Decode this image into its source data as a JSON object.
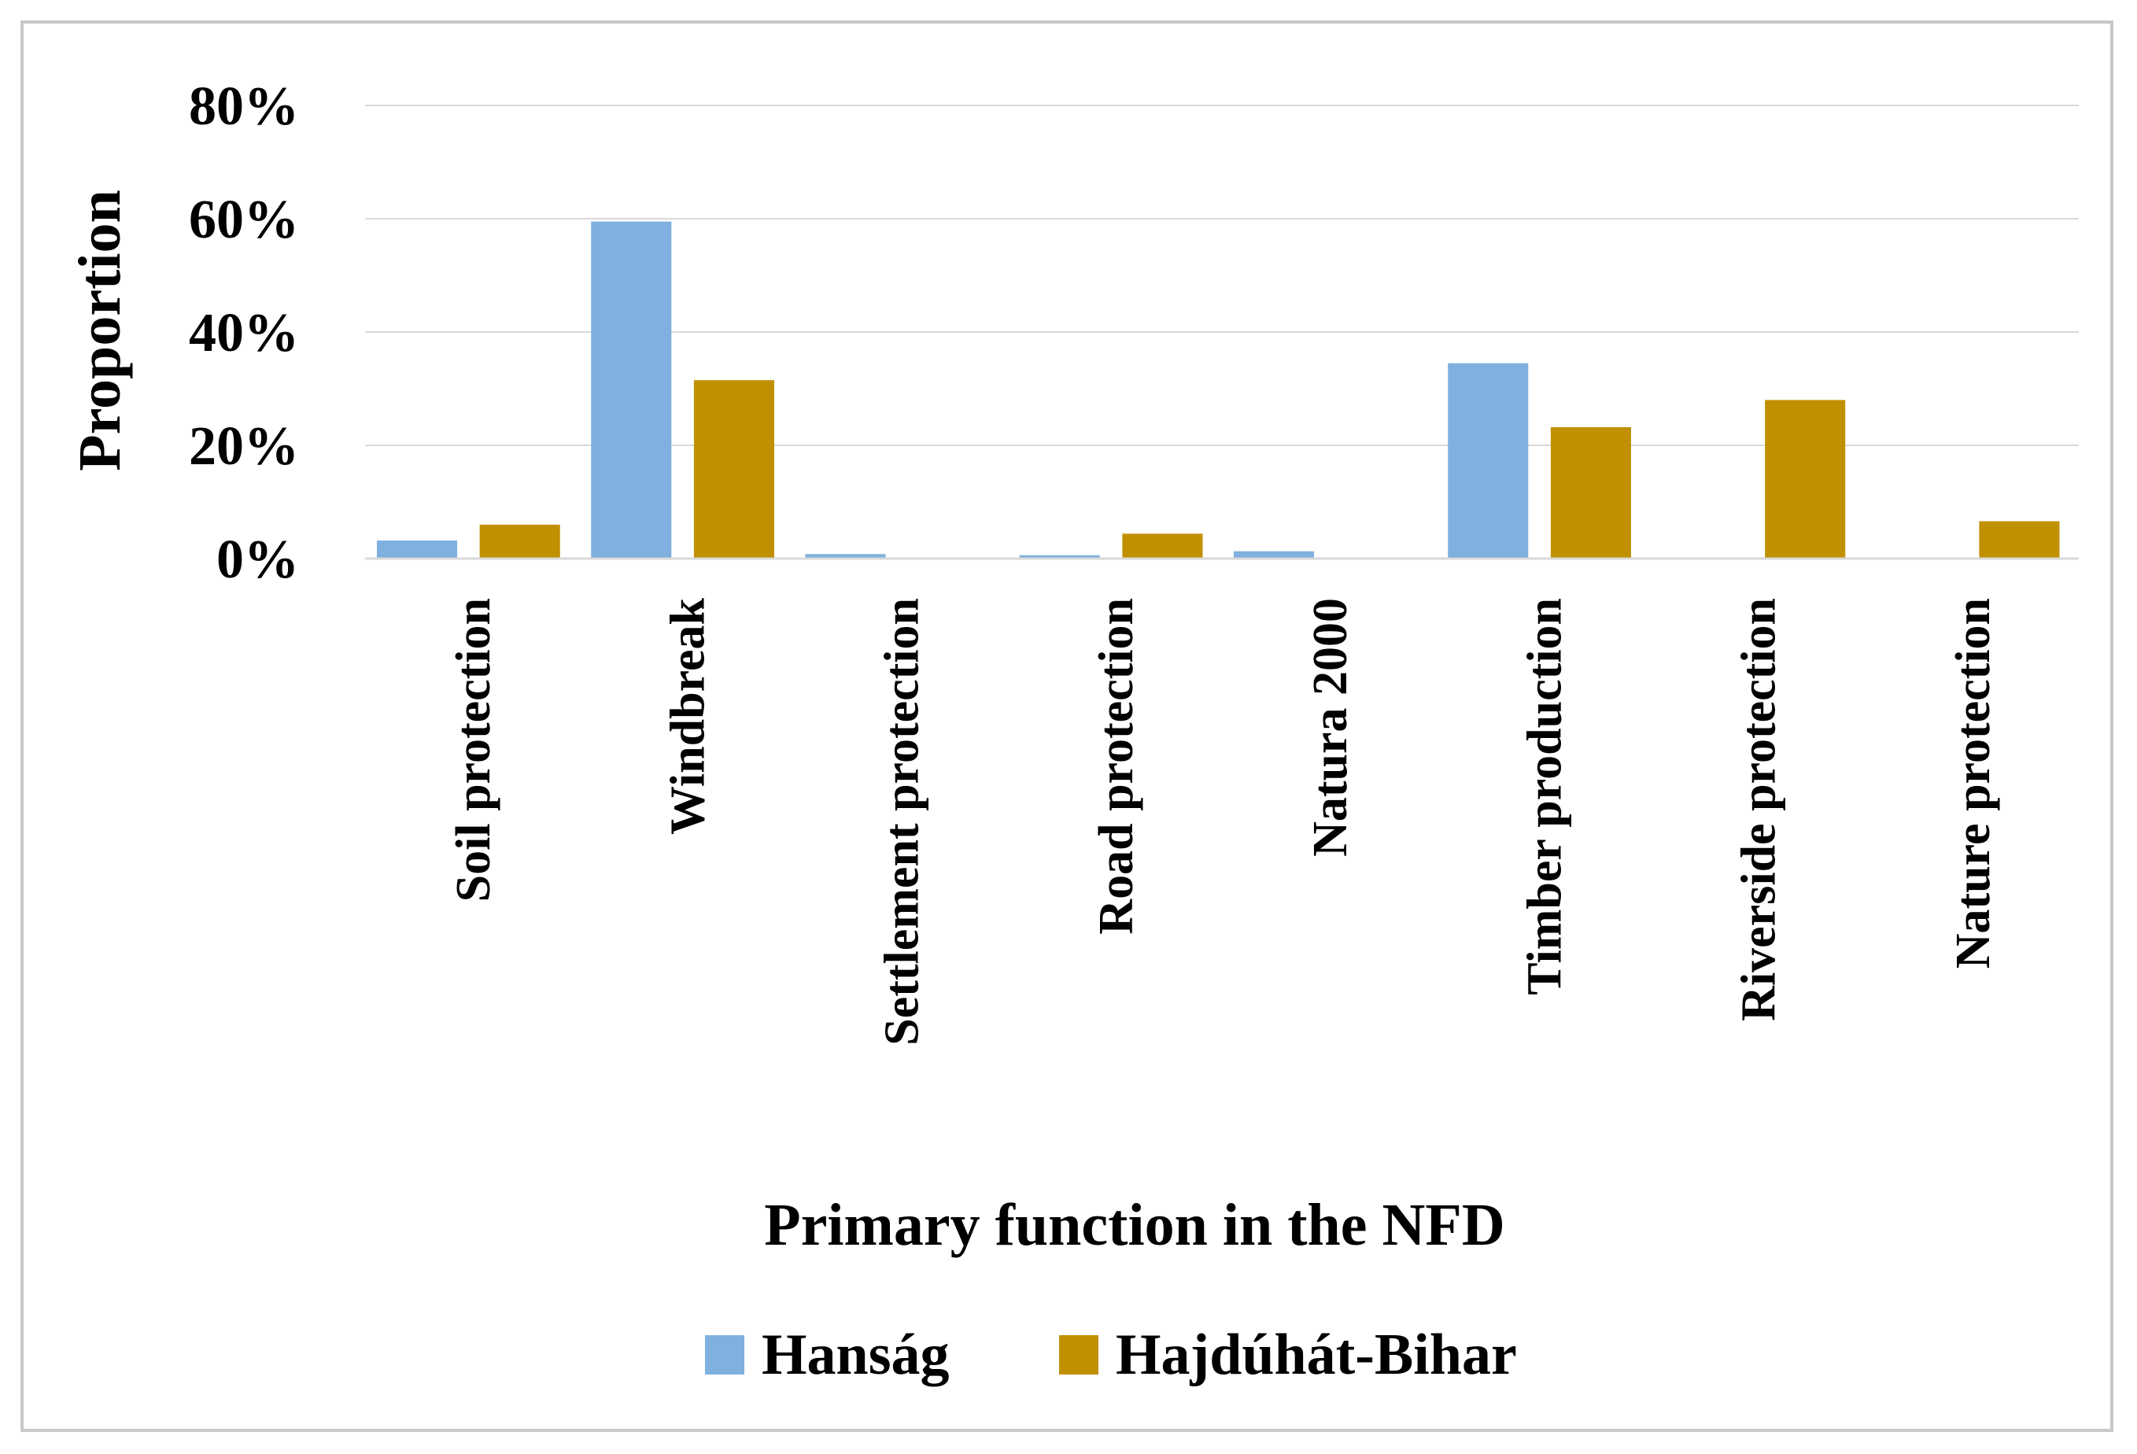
{
  "chart_data": {
    "type": "bar",
    "title": "",
    "xlabel": "Primary function in the NFD",
    "ylabel": "Proportion",
    "ylim": [
      0,
      80
    ],
    "yticks": [
      0,
      20,
      40,
      60,
      80
    ],
    "ytick_labels": [
      "0%",
      "20%",
      "40%",
      "60%",
      "80%"
    ],
    "grid": true,
    "legend_position": "bottom",
    "categories": [
      "Soil protection",
      "Windbreak",
      "Settlement protection",
      "Road protection",
      "Natura 2000",
      "Timber production",
      "Riverside protection",
      "Nature protection"
    ],
    "series": [
      {
        "name": "Hanság",
        "color": "#7fb0df",
        "values": [
          3.2,
          59.5,
          0.8,
          0.6,
          1.3,
          34.5,
          0,
          0
        ]
      },
      {
        "name": "Hajdúhát-Bihar",
        "color": "#c09000",
        "values": [
          6.0,
          31.5,
          0,
          4.4,
          0,
          23.2,
          28.0,
          6.6
        ]
      }
    ]
  }
}
